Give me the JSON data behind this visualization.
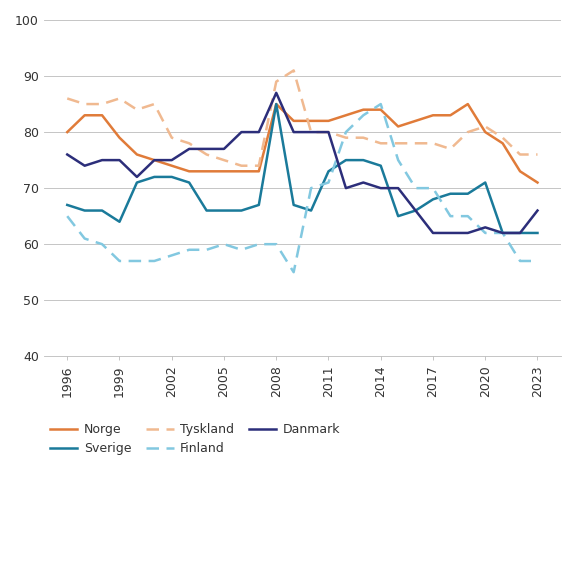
{
  "years": [
    1996,
    1997,
    1998,
    1999,
    2000,
    2001,
    2002,
    2003,
    2004,
    2005,
    2006,
    2007,
    2008,
    2009,
    2010,
    2011,
    2012,
    2013,
    2014,
    2015,
    2016,
    2017,
    2018,
    2019,
    2020,
    2021,
    2022,
    2023
  ],
  "norge": [
    80,
    83,
    83,
    79,
    76,
    75,
    74,
    73,
    73,
    73,
    73,
    73,
    85,
    82,
    82,
    82,
    83,
    84,
    84,
    81,
    82,
    83,
    83,
    85,
    80,
    78,
    73,
    71
  ],
  "sverige": [
    67,
    66,
    66,
    64,
    71,
    72,
    72,
    71,
    66,
    66,
    66,
    67,
    85,
    67,
    66,
    73,
    75,
    75,
    74,
    65,
    66,
    68,
    69,
    69,
    71,
    62,
    62,
    62
  ],
  "tyskland": [
    86,
    85,
    85,
    86,
    84,
    85,
    79,
    78,
    76,
    75,
    74,
    74,
    89,
    91,
    80,
    80,
    79,
    79,
    78,
    78,
    78,
    78,
    77,
    80,
    81,
    79,
    76,
    76
  ],
  "finland": [
    65,
    61,
    60,
    57,
    57,
    57,
    58,
    59,
    59,
    60,
    59,
    60,
    60,
    55,
    70,
    71,
    80,
    83,
    85,
    75,
    70,
    70,
    65,
    65,
    62,
    62,
    57,
    57
  ],
  "danmark": [
    76,
    74,
    75,
    75,
    72,
    75,
    75,
    77,
    77,
    77,
    80,
    80,
    87,
    80,
    80,
    80,
    70,
    71,
    70,
    70,
    66,
    62,
    62,
    62,
    63,
    62,
    62,
    66
  ],
  "norge_color": "#E07B39",
  "sverige_color": "#1A7A9A",
  "tyskland_color": "#F0B990",
  "finland_color": "#82C8E0",
  "danmark_color": "#2C2E7A",
  "ylim": [
    40,
    100
  ],
  "yticks": [
    40,
    50,
    60,
    70,
    80,
    90,
    100
  ],
  "xticks": [
    1996,
    1999,
    2002,
    2005,
    2008,
    2011,
    2014,
    2017,
    2020,
    2023
  ],
  "background_color": "#ffffff",
  "grid_color": "#bbbbbb",
  "legend_order": [
    "norge",
    "sverige",
    "tyskland",
    "finland",
    "danmark"
  ],
  "legend_labels": [
    "Norge",
    "Sverige",
    "Tyskland",
    "Finland",
    "Danmark"
  ],
  "legend_styles": [
    "solid",
    "solid",
    "dashed",
    "dashed",
    "solid"
  ]
}
